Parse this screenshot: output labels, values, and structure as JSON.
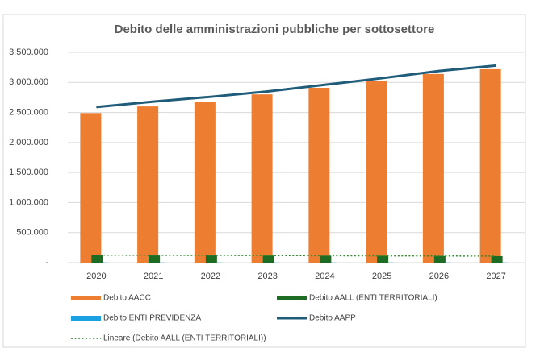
{
  "chart_data": {
    "type": "bar",
    "title": "Debito delle amministrazioni pubbliche per sottosettore",
    "categories": [
      "2020",
      "2021",
      "2022",
      "2023",
      "2024",
      "2025",
      "2026",
      "2027"
    ],
    "series": [
      {
        "name": "Debito AACC",
        "color": "#ed7d31",
        "kind": "bar",
        "values": [
          2490000,
          2600000,
          2680000,
          2800000,
          2910000,
          3030000,
          3140000,
          3220000
        ]
      },
      {
        "name": "Debito AALL (ENTI TERRITORIALI)",
        "color": "#1e6b24",
        "kind": "bar",
        "values": [
          125000,
          123000,
          120000,
          118000,
          115000,
          113000,
          110000,
          108000
        ]
      },
      {
        "name": "Debito ENTI PREVIDENZA",
        "color": "#1ba1e2",
        "kind": "bar",
        "values": [
          3000,
          3000,
          3000,
          3000,
          3000,
          3000,
          3000,
          3000
        ]
      },
      {
        "name": "Debito AAPP",
        "color": "#1f5c7a",
        "kind": "line",
        "values": [
          2590000,
          2680000,
          2760000,
          2850000,
          2960000,
          3070000,
          3190000,
          3280000
        ]
      },
      {
        "name": "Lineare (Debito AALL (ENTI TERRITORIALI))",
        "color": "#2e8b2e",
        "kind": "trend",
        "values": [
          125400,
          123000,
          120500,
          118100,
          115600,
          113200,
          110700,
          108300
        ]
      }
    ],
    "ylim": [
      0,
      3500000
    ],
    "yticks": [
      {
        "value": 0,
        "label": "-"
      },
      {
        "value": 500000,
        "label": "500.000"
      },
      {
        "value": 1000000,
        "label": "1.000.000"
      },
      {
        "value": 1500000,
        "label": "1.500.000"
      },
      {
        "value": 2000000,
        "label": "2.000.000"
      },
      {
        "value": 2500000,
        "label": "2.500.000"
      },
      {
        "value": 3000000,
        "label": "3.000.000"
      },
      {
        "value": 3500000,
        "label": "3.500.000"
      }
    ],
    "grid": true,
    "legend": "bottom"
  }
}
